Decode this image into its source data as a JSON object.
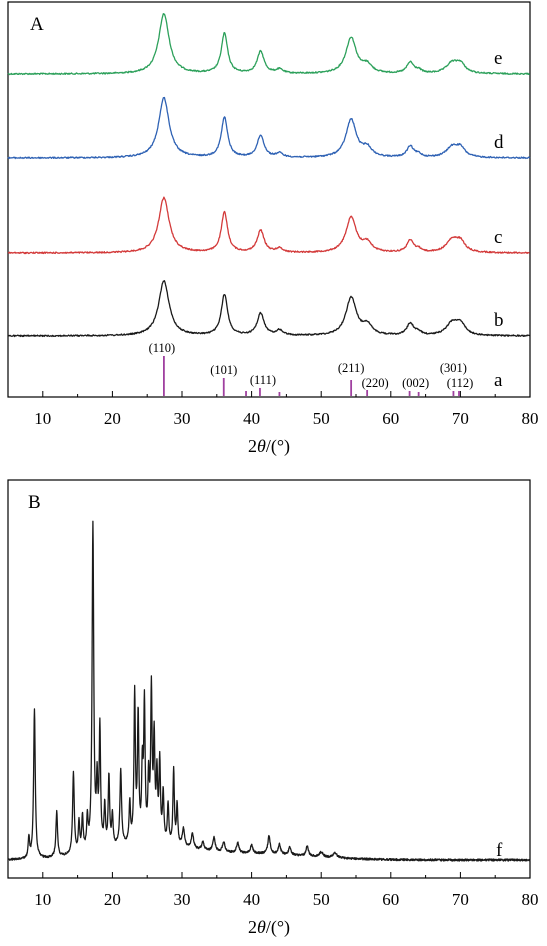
{
  "chart_data": [
    {
      "type": "line",
      "panel_label": "A",
      "xlabel_prefix": "2",
      "xlabel_theta": "θ",
      "xlabel_suffix": "/(°)",
      "xlim": [
        5,
        80
      ],
      "xticks": [
        10,
        20,
        30,
        40,
        50,
        60,
        70,
        80
      ],
      "y_axis_ticks": false,
      "series": [
        {
          "name": "e",
          "color": "#2ca05a",
          "baseline": 74,
          "scale": 1.0,
          "peaks": [
            [
              27.4,
              60,
              0.9
            ],
            [
              36.1,
              40,
              0.55
            ],
            [
              41.3,
              22,
              0.6
            ],
            [
              44.0,
              4,
              0.6
            ],
            [
              54.3,
              36,
              0.9
            ],
            [
              56.6,
              8,
              0.8
            ],
            [
              62.8,
              11,
              0.6
            ],
            [
              64.0,
              3,
              0.5
            ],
            [
              68.8,
              10,
              1.0
            ],
            [
              70.0,
              9,
              0.8
            ]
          ]
        },
        {
          "name": "d",
          "color": "#2f62b4",
          "baseline": 158,
          "scale": 1.0,
          "peaks": [
            [
              27.4,
              60,
              0.9
            ],
            [
              36.1,
              40,
              0.55
            ],
            [
              41.3,
              22,
              0.6
            ],
            [
              44.0,
              4,
              0.6
            ],
            [
              54.3,
              38,
              0.9
            ],
            [
              56.6,
              9,
              0.8
            ],
            [
              62.8,
              11,
              0.6
            ],
            [
              64.0,
              3,
              0.5
            ],
            [
              68.8,
              10,
              1.0
            ],
            [
              70.0,
              9,
              0.8
            ]
          ]
        },
        {
          "name": "c",
          "color": "#d33a3a",
          "baseline": 253,
          "scale": 1.0,
          "peaks": [
            [
              27.4,
              55,
              0.9
            ],
            [
              36.1,
              40,
              0.55
            ],
            [
              41.3,
              22,
              0.6
            ],
            [
              44.0,
              4,
              0.6
            ],
            [
              54.3,
              35,
              0.9
            ],
            [
              56.6,
              9,
              0.8
            ],
            [
              62.8,
              12,
              0.6
            ],
            [
              64.0,
              3,
              0.5
            ],
            [
              68.8,
              12,
              1.0
            ],
            [
              70.0,
              10,
              0.8
            ]
          ]
        },
        {
          "name": "b",
          "color": "#1a1a1a",
          "baseline": 336,
          "scale": 1.0,
          "peaks": [
            [
              27.4,
              55,
              0.9
            ],
            [
              36.1,
              41,
              0.55
            ],
            [
              41.3,
              22,
              0.6
            ],
            [
              44.0,
              5,
              0.6
            ],
            [
              54.3,
              38,
              0.9
            ],
            [
              56.6,
              10,
              0.8
            ],
            [
              62.8,
              12,
              0.6
            ],
            [
              64.0,
              3,
              0.5
            ],
            [
              68.8,
              12,
              1.0
            ],
            [
              70.0,
              11,
              0.8
            ]
          ]
        }
      ],
      "reference": {
        "name": "a",
        "color": "#a040a0",
        "baseline": 396,
        "sticks": [
          {
            "x": 27.4,
            "h": 40,
            "hkl": "(110)"
          },
          {
            "x": 36.0,
            "h": 18,
            "hkl": "(101)"
          },
          {
            "x": 39.2,
            "h": 5,
            "hkl": ""
          },
          {
            "x": 41.2,
            "h": 8,
            "hkl": "(111)"
          },
          {
            "x": 44.0,
            "h": 4,
            "hkl": ""
          },
          {
            "x": 54.3,
            "h": 16,
            "hkl": "(211)"
          },
          {
            "x": 56.6,
            "h": 6,
            "hkl": "(220)"
          },
          {
            "x": 62.7,
            "h": 5,
            "hkl": ""
          },
          {
            "x": 64.0,
            "h": 4,
            "hkl": "(002)"
          },
          {
            "x": 69.0,
            "h": 5,
            "hkl": "(301)"
          },
          {
            "x": 69.8,
            "h": 5,
            "hkl": "(112)"
          }
        ]
      }
    },
    {
      "type": "line",
      "panel_label": "B",
      "xlabel_prefix": "2",
      "xlabel_theta": "θ",
      "xlabel_suffix": "/(°)",
      "xlim": [
        5,
        80
      ],
      "xticks": [
        10,
        20,
        30,
        40,
        50,
        60,
        70,
        80
      ],
      "y_axis_ticks": false,
      "series": [
        {
          "name": "f",
          "color": "#1a1a1a",
          "baseline": 862,
          "peaks": [
            [
              8.0,
              20,
              0.12
            ],
            [
              8.8,
              150,
              0.14
            ],
            [
              12.0,
              45,
              0.14
            ],
            [
              14.4,
              82,
              0.14
            ],
            [
              15.2,
              30,
              0.12
            ],
            [
              15.7,
              35,
              0.12
            ],
            [
              16.4,
              30,
              0.12
            ],
            [
              17.2,
              325,
              0.14
            ],
            [
              17.8,
              60,
              0.12
            ],
            [
              18.2,
              118,
              0.12
            ],
            [
              18.9,
              40,
              0.12
            ],
            [
              19.5,
              70,
              0.12
            ],
            [
              20.0,
              30,
              0.12
            ],
            [
              21.2,
              75,
              0.14
            ],
            [
              22.5,
              40,
              0.12
            ],
            [
              23.2,
              148,
              0.12
            ],
            [
              23.7,
              125,
              0.12
            ],
            [
              24.3,
              70,
              0.12
            ],
            [
              24.6,
              135,
              0.12
            ],
            [
              25.2,
              60,
              0.12
            ],
            [
              25.6,
              150,
              0.12
            ],
            [
              26.0,
              100,
              0.12
            ],
            [
              26.4,
              65,
              0.12
            ],
            [
              26.8,
              80,
              0.12
            ],
            [
              27.3,
              50,
              0.12
            ],
            [
              28.0,
              40,
              0.12
            ],
            [
              28.8,
              75,
              0.12
            ],
            [
              29.3,
              40,
              0.12
            ],
            [
              30.2,
              18,
              0.2
            ],
            [
              31.5,
              15,
              0.2
            ],
            [
              33.0,
              8,
              0.2
            ],
            [
              34.6,
              14,
              0.2
            ],
            [
              36.0,
              10,
              0.2
            ],
            [
              38.0,
              10,
              0.2
            ],
            [
              40.0,
              8,
              0.2
            ],
            [
              42.5,
              18,
              0.2
            ],
            [
              44.0,
              10,
              0.2
            ],
            [
              45.5,
              8,
              0.2
            ],
            [
              48.0,
              10,
              0.2
            ],
            [
              50.0,
              5,
              0.3
            ],
            [
              52.0,
              5,
              0.3
            ]
          ]
        }
      ]
    }
  ]
}
